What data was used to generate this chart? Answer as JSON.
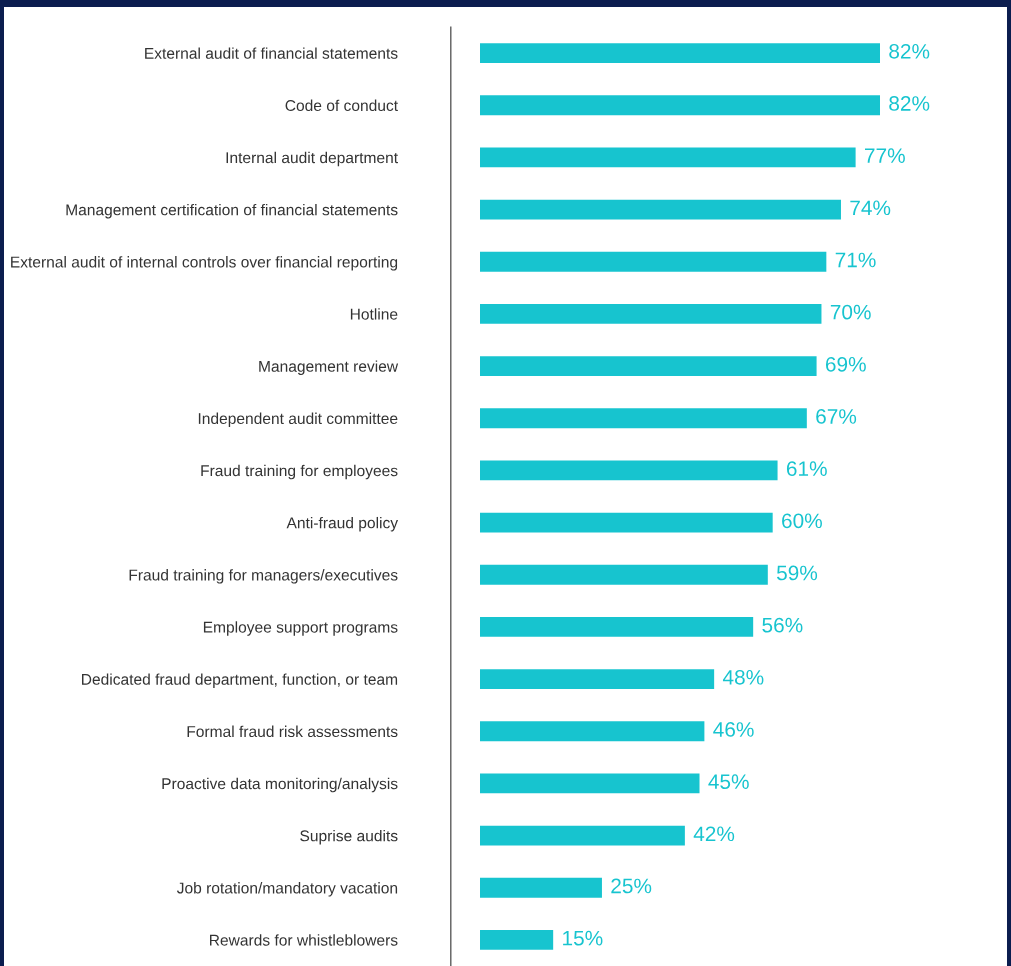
{
  "chart_data": {
    "type": "bar",
    "orientation": "horizontal",
    "categories": [
      "External audit of financial statements",
      "Code of conduct",
      "Internal audit department",
      "Management certification of financial statements",
      "External audit of internal controls over financial reporting",
      "Hotline",
      "Management review",
      "Independent audit committee",
      "Fraud training for employees",
      "Anti-fraud policy",
      "Fraud training for managers/executives",
      "Employee support programs",
      "Dedicated fraud department, function, or team",
      "Formal fraud risk assessments",
      "Proactive data monitoring/analysis",
      "Suprise audits",
      "Job rotation/mandatory vacation",
      "Rewards for whistleblowers"
    ],
    "values": [
      82,
      82,
      77,
      74,
      71,
      70,
      69,
      67,
      61,
      60,
      59,
      56,
      48,
      46,
      45,
      42,
      25,
      15
    ],
    "value_labels": [
      "82%",
      "82%",
      "77%",
      "74%",
      "71%",
      "70%",
      "69%",
      "67%",
      "61%",
      "60%",
      "59%",
      "56%",
      "48%",
      "46%",
      "45%",
      "42%",
      "25%",
      "15%"
    ],
    "color": "#17c4cf",
    "tick_labels": "y",
    "grid": false,
    "legend": false
  }
}
